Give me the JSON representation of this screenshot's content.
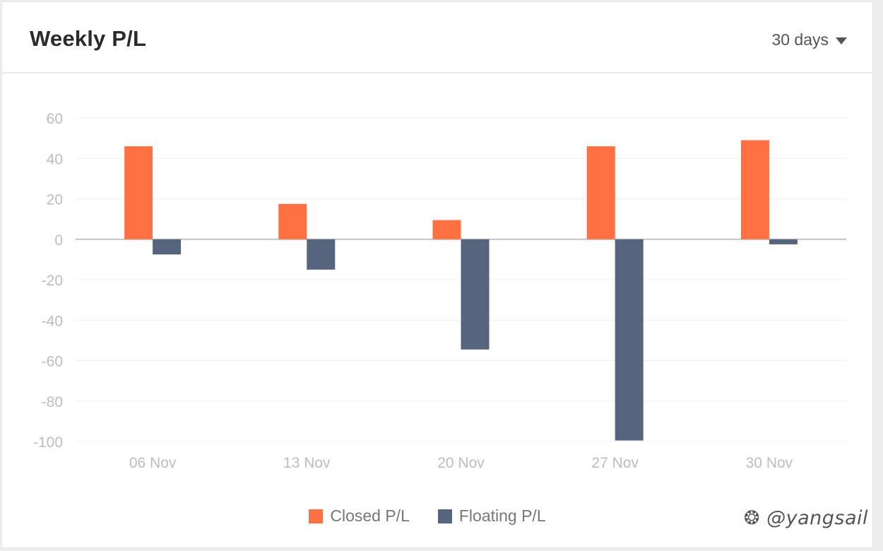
{
  "card": {
    "title": "Weekly P/L",
    "range_select": {
      "value": "30 days"
    }
  },
  "legend": [
    {
      "label": "Closed P/L",
      "color": "#ff7143"
    },
    {
      "label": "Floating P/L",
      "color": "#56647d"
    }
  ],
  "watermark": "❂ @yangsail",
  "chart_data": {
    "type": "bar",
    "categories": [
      "06 Nov",
      "13 Nov",
      "20 Nov",
      "27 Nov",
      "30 Nov"
    ],
    "series": [
      {
        "name": "Closed P/L",
        "color": "#ff7143",
        "values": [
          46,
          17.5,
          9.5,
          46,
          49
        ]
      },
      {
        "name": "Floating P/L",
        "color": "#56647d",
        "values": [
          -7.5,
          -15,
          -54.5,
          -99.5,
          -2.5
        ]
      }
    ],
    "yticks": [
      60,
      40,
      20,
      0,
      -20,
      -40,
      -60,
      -80,
      -100
    ],
    "ylim": [
      -100,
      60
    ],
    "grid": true,
    "legend_position": "bottom"
  }
}
